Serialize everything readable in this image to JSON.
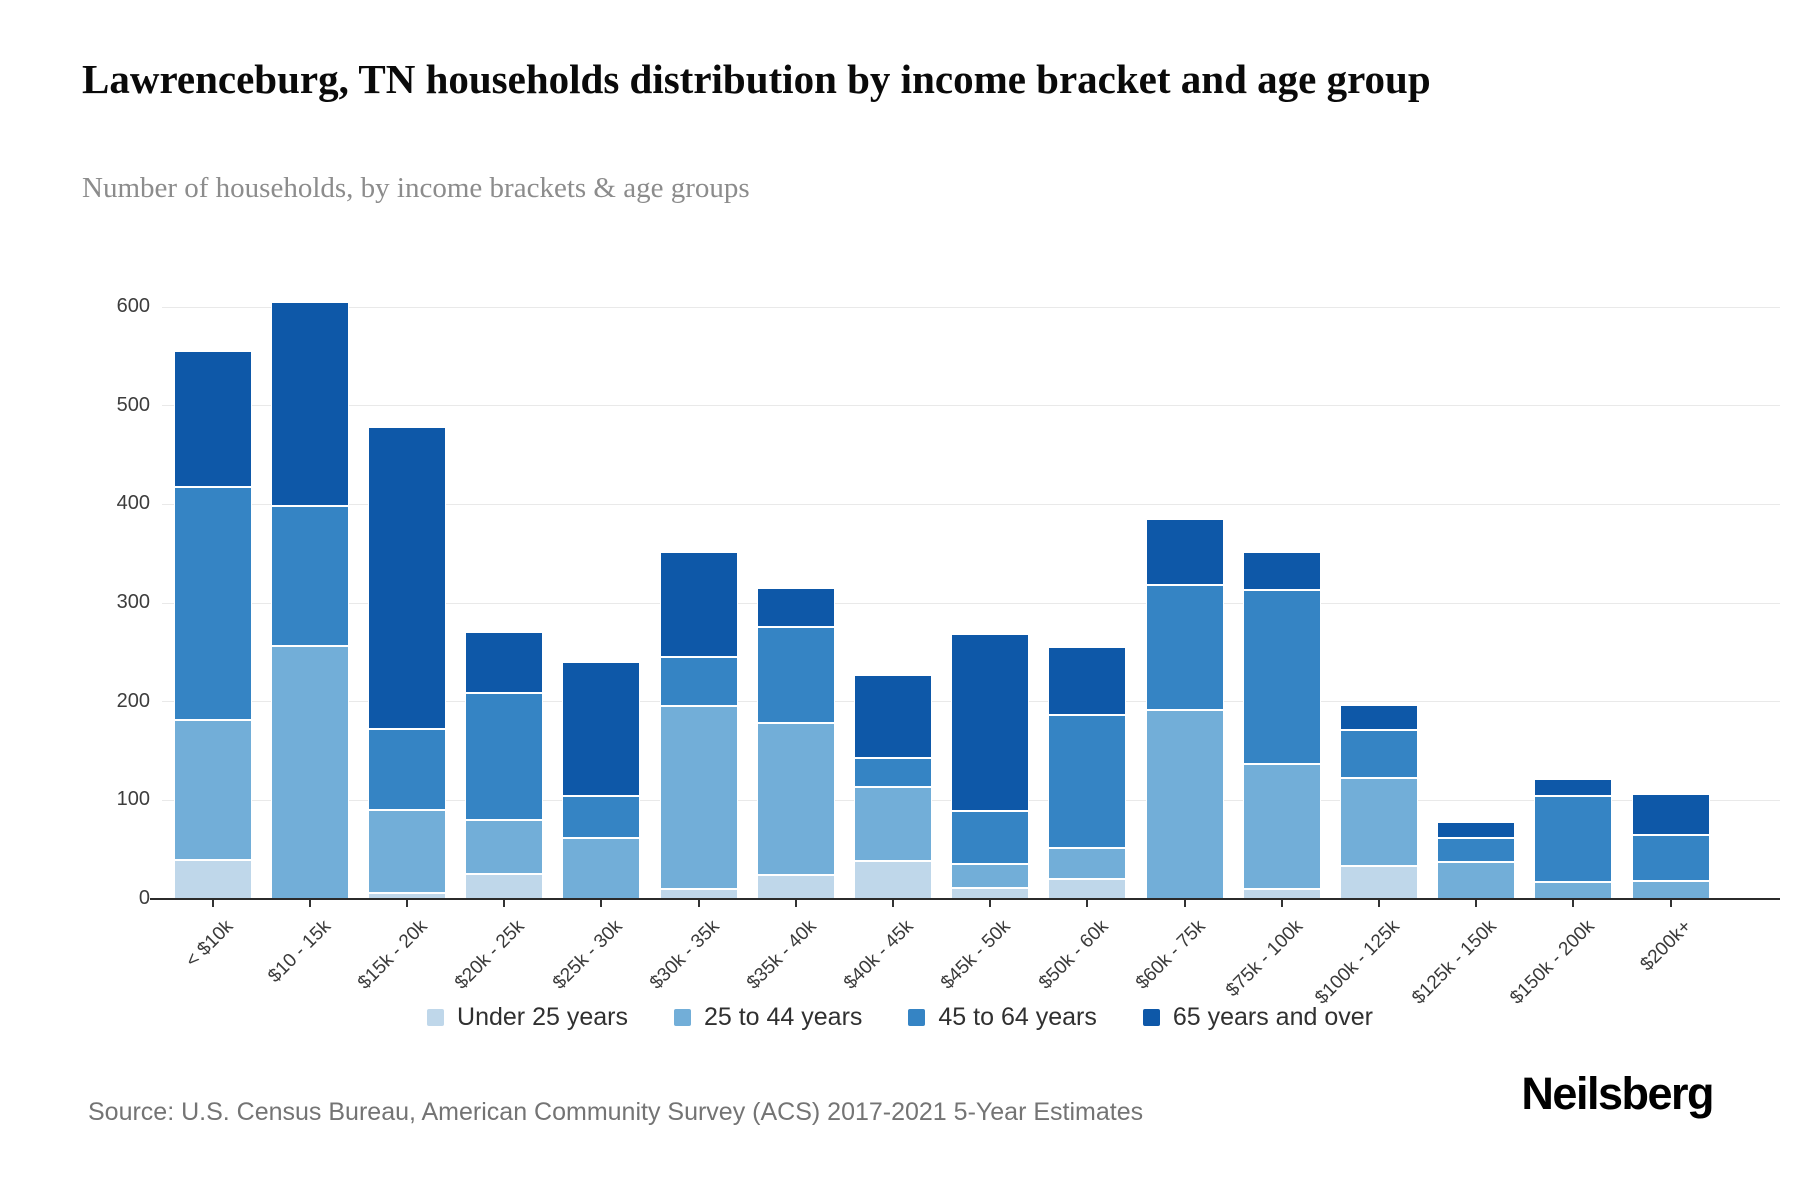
{
  "header": {
    "title": "Lawrenceburg, TN households distribution by income bracket and age group",
    "subtitle": "Number of households, by income brackets & age groups"
  },
  "chart_data": {
    "type": "bar",
    "stacked": true,
    "title": "Lawrenceburg, TN households distribution by income bracket and age group",
    "subtitle": "Number of households, by income brackets & age groups",
    "xlabel": "",
    "ylabel": "",
    "ylim": [
      0,
      600
    ],
    "yticks": [
      0,
      100,
      200,
      300,
      400,
      500,
      600
    ],
    "grid": true,
    "legend_position": "bottom",
    "categories": [
      "< $10k",
      "$10 - 15k",
      "$15k - 20k",
      "$20k - 25k",
      "$25k - 30k",
      "$30k - 35k",
      "$35k - 40k",
      "$40k - 45k",
      "$45k - 50k",
      "$50k - 60k",
      "$60k - 75k",
      "$75k - 100k",
      "$100k - 125k",
      "$125k - 150k",
      "$150k - 200k",
      "$200k+"
    ],
    "series": [
      {
        "name": "Under 25 years",
        "color": "#bfd7ea",
        "values": [
          40,
          0,
          6,
          25,
          0,
          10,
          24,
          39,
          11,
          20,
          0,
          10,
          33,
          0,
          0,
          0
        ]
      },
      {
        "name": "25 to 44 years",
        "color": "#72aed8",
        "values": [
          141,
          256,
          84,
          55,
          62,
          186,
          154,
          75,
          25,
          32,
          192,
          127,
          90,
          38,
          17,
          18
        ]
      },
      {
        "name": "45 to 64 years",
        "color": "#3584c4",
        "values": [
          237,
          142,
          82,
          129,
          42,
          49,
          98,
          29,
          53,
          135,
          126,
          176,
          48,
          24,
          87,
          47
        ]
      },
      {
        "name": "65 years and over",
        "color": "#0e58a8",
        "values": [
          137,
          207,
          306,
          62,
          136,
          107,
          39,
          84,
          180,
          68,
          67,
          39,
          26,
          16,
          18,
          41
        ]
      }
    ],
    "totals": [
      555,
      605,
      478,
      271,
      240,
      352,
      315,
      227,
      269,
      255,
      385,
      352,
      197,
      78,
      122,
      106
    ]
  },
  "footer": {
    "source": "Source: U.S. Census Bureau, American Community Survey (ACS) 2017-2021 5-Year Estimates",
    "brand": "Neilsberg"
  }
}
